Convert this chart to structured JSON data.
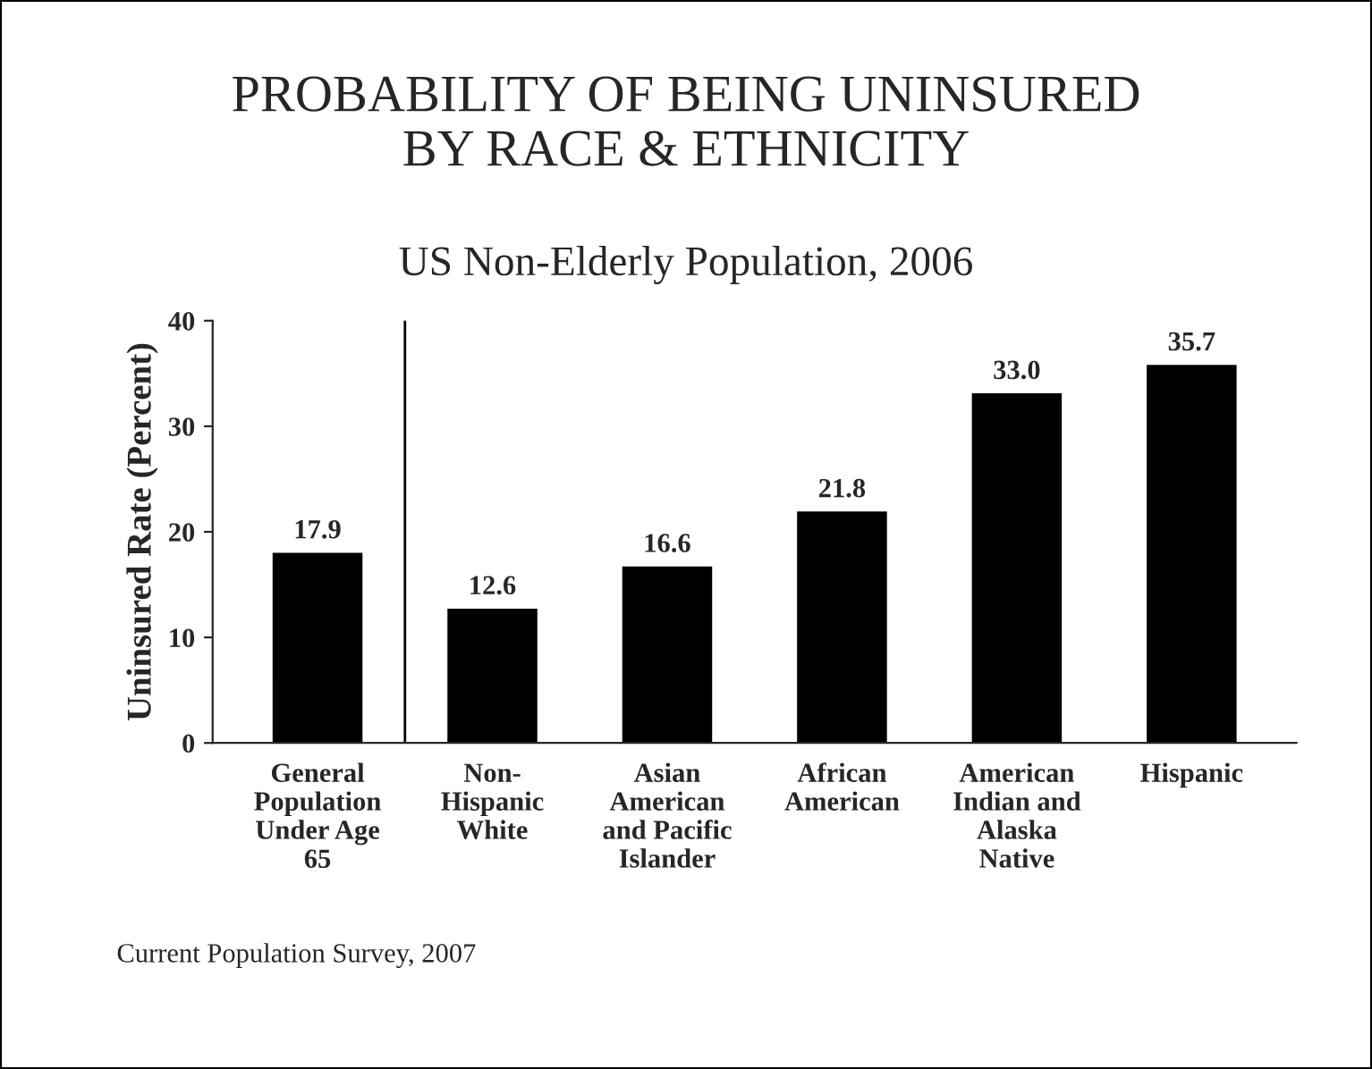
{
  "chart_data": {
    "type": "bar",
    "title": "PROBABILITY OF BEING UNINSURED\nBY RACE & ETHNICITY",
    "subtitle": "US Non-Elderly Population, 2006",
    "ylabel": "Uninsured Rate (Percent)",
    "categories": [
      "General\nPopulation\nUnder Age\n65",
      "Non-\nHispanic\nWhite",
      "Asian\nAmerican\nand Pacific\nIslander",
      "African\nAmerican",
      "American\nIndian and\nAlaska\nNative",
      "Hispanic"
    ],
    "values": [
      17.9,
      12.6,
      16.6,
      21.8,
      33.0,
      35.7
    ],
    "value_labels": [
      "17.9",
      "12.6",
      "16.6",
      "21.8",
      "33.0",
      "35.7"
    ],
    "color": "#000000",
    "ylim": [
      0,
      40
    ],
    "yticks": [
      0,
      10,
      20,
      30,
      40
    ],
    "grid": false,
    "annotations": [
      "Current Population Survey, 2007"
    ]
  }
}
